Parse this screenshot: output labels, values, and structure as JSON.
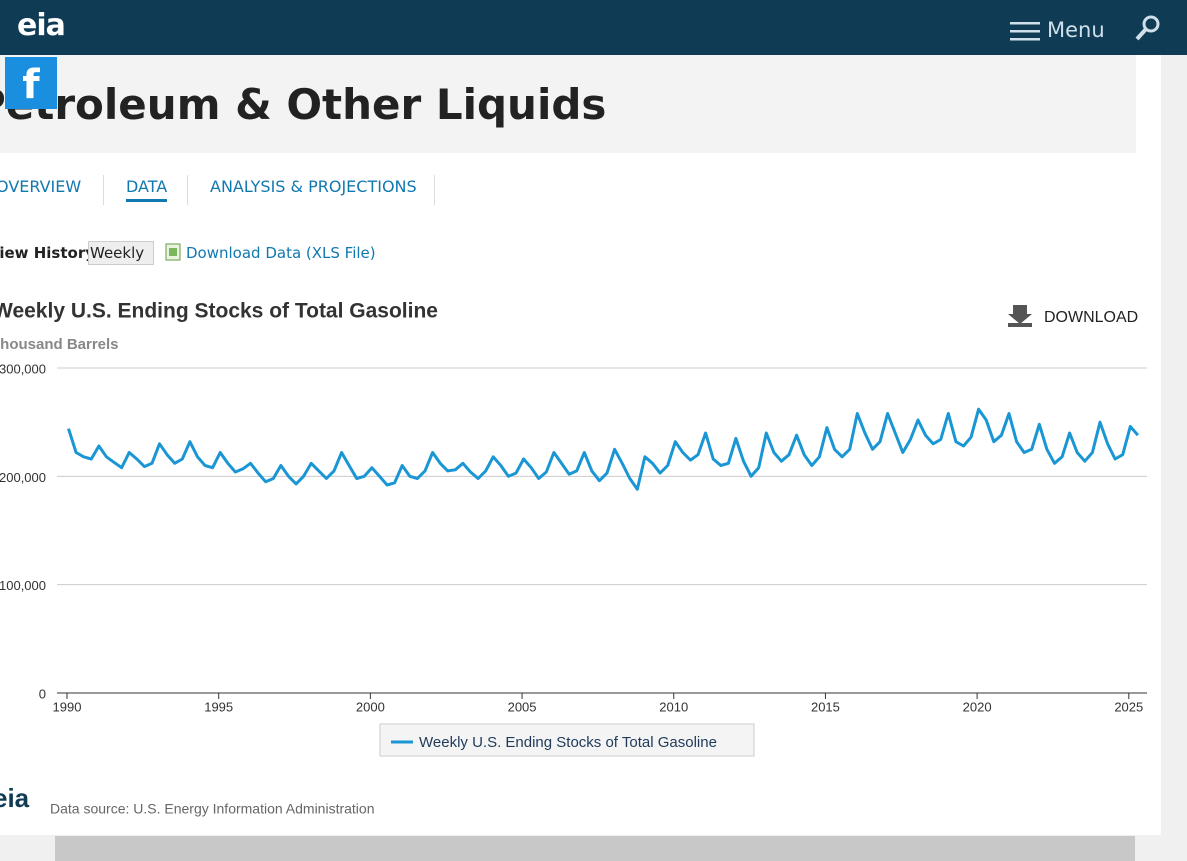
{
  "header": {
    "logo": "eia",
    "menu": "Menu"
  },
  "page_title": "Petroleum & Other Liquids",
  "tabs": [
    "OVERVIEW",
    "DATA",
    "ANALYSIS & PROJECTIONS"
  ],
  "view_history": {
    "label": "View History:",
    "selected": "Weekly"
  },
  "download_data": "Download Data (XLS File)",
  "download_button": "DOWNLOAD",
  "chart_data": {
    "type": "line",
    "title": "Weekly U.S. Ending Stocks of Total Gasoline",
    "subtitle": "Thousand Barrels",
    "x": [
      1990.05,
      1990.3,
      1990.55,
      1990.8,
      1991.05,
      1991.3,
      1991.55,
      1991.8,
      1992.05,
      1992.3,
      1992.55,
      1992.8,
      1993.05,
      1993.3,
      1993.55,
      1993.8,
      1994.05,
      1994.3,
      1994.55,
      1994.8,
      1995.05,
      1995.3,
      1995.55,
      1995.8,
      1996.05,
      1996.3,
      1996.55,
      1996.8,
      1997.05,
      1997.3,
      1997.55,
      1997.8,
      1998.05,
      1998.3,
      1998.55,
      1998.8,
      1999.05,
      1999.3,
      1999.55,
      1999.8,
      2000.05,
      2000.3,
      2000.55,
      2000.8,
      2001.05,
      2001.3,
      2001.55,
      2001.8,
      2002.05,
      2002.3,
      2002.55,
      2002.8,
      2003.05,
      2003.3,
      2003.55,
      2003.8,
      2004.05,
      2004.3,
      2004.55,
      2004.8,
      2005.05,
      2005.3,
      2005.55,
      2005.8,
      2006.05,
      2006.3,
      2006.55,
      2006.8,
      2007.05,
      2007.3,
      2007.55,
      2007.8,
      2008.05,
      2008.3,
      2008.55,
      2008.8,
      2009.05,
      2009.3,
      2009.55,
      2009.8,
      2010.05,
      2010.3,
      2010.55,
      2010.8,
      2011.05,
      2011.3,
      2011.55,
      2011.8,
      2012.05,
      2012.3,
      2012.55,
      2012.8,
      2013.05,
      2013.3,
      2013.55,
      2013.8,
      2014.05,
      2014.3,
      2014.55,
      2014.8,
      2015.05,
      2015.3,
      2015.55,
      2015.8,
      2016.05,
      2016.3,
      2016.55,
      2016.8,
      2017.05,
      2017.3,
      2017.55,
      2017.8,
      2018.05,
      2018.3,
      2018.55,
      2018.8,
      2019.05,
      2019.3,
      2019.55,
      2019.8,
      2020.05,
      2020.3,
      2020.55,
      2020.8,
      2021.05,
      2021.3,
      2021.55,
      2021.8,
      2022.05,
      2022.3,
      2022.55,
      2022.8,
      2023.05,
      2023.3,
      2023.55,
      2023.8,
      2024.05,
      2024.3,
      2024.55,
      2024.8,
      2025.05,
      2025.3
    ],
    "series": [
      {
        "name": "Weekly U.S. Ending Stocks of Total Gasoline",
        "color": "#1a96d4",
        "values": [
          244000,
          222000,
          218000,
          216000,
          228000,
          218000,
          213000,
          208000,
          222000,
          216000,
          209000,
          212000,
          230000,
          220000,
          212000,
          216000,
          232000,
          218000,
          210000,
          208000,
          222000,
          212000,
          204000,
          207000,
          212000,
          203000,
          195000,
          198000,
          210000,
          200000,
          193000,
          200000,
          212000,
          205000,
          198000,
          205000,
          222000,
          210000,
          198000,
          200000,
          208000,
          200000,
          192000,
          194000,
          210000,
          200000,
          198000,
          205000,
          222000,
          212000,
          205000,
          206000,
          212000,
          204000,
          198000,
          205000,
          218000,
          210000,
          200000,
          203000,
          216000,
          208000,
          198000,
          204000,
          222000,
          212000,
          202000,
          205000,
          222000,
          205000,
          196000,
          203000,
          225000,
          212000,
          198000,
          188000,
          218000,
          212000,
          203000,
          210000,
          232000,
          222000,
          215000,
          220000,
          240000,
          216000,
          210000,
          212000,
          235000,
          214000,
          200000,
          208000,
          240000,
          222000,
          214000,
          220000,
          238000,
          220000,
          210000,
          218000,
          245000,
          225000,
          218000,
          225000,
          258000,
          240000,
          225000,
          232000,
          258000,
          240000,
          222000,
          234000,
          252000,
          238000,
          230000,
          234000,
          258000,
          232000,
          228000,
          236000,
          262000,
          252000,
          232000,
          238000,
          258000,
          232000,
          222000,
          225000,
          248000,
          225000,
          212000,
          218000,
          240000,
          222000,
          214000,
          222000,
          250000,
          230000,
          216000,
          220000,
          246000,
          238000
        ]
      }
    ],
    "xlim": [
      1989.67,
      2025.6
    ],
    "xticks": [
      1990,
      1995,
      2000,
      2005,
      2010,
      2015,
      2020,
      2025
    ],
    "ylim": [
      0,
      300000
    ],
    "yticks": [
      0,
      {
        "value": 100000,
        "label": "100,000"
      },
      {
        "value": 200000,
        "label": "200,000"
      },
      {
        "value": 300000,
        "label": "300,000"
      }
    ],
    "grid": true
  },
  "footer": {
    "logo": "eia",
    "source": "Data source: U.S. Energy Information Administration"
  }
}
